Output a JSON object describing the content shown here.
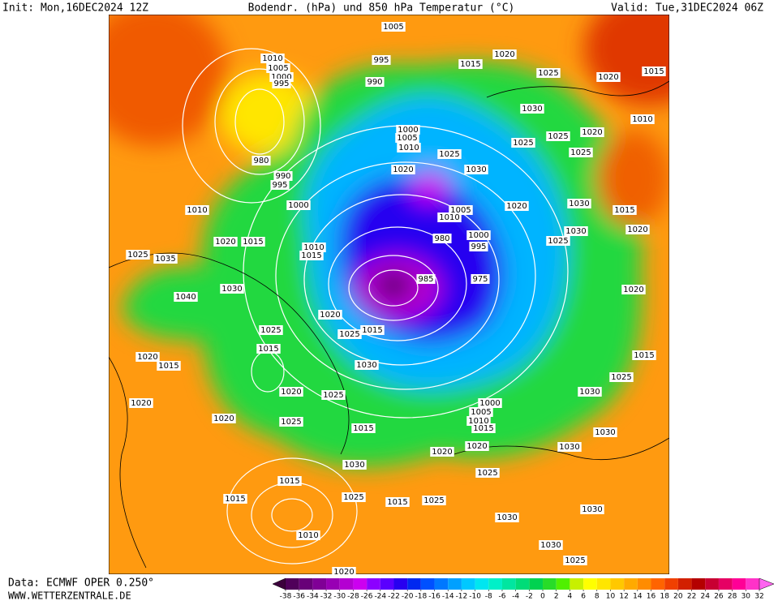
{
  "header": {
    "init": "Init: Mon,16DEC2024 12Z",
    "title": "Bodendr. (hPa) und 850 hPa Temperatur (°C)",
    "valid": "Valid: Tue,31DEC2024 06Z"
  },
  "footer": {
    "data": "Data: ECMWF OPER 0.250°",
    "site": "WWW.WETTERZENTRALE.DE"
  },
  "colorbar": {
    "ticks": [
      -38,
      -36,
      -34,
      -32,
      -30,
      -28,
      -26,
      -24,
      -22,
      -20,
      -18,
      -16,
      -14,
      -12,
      -10,
      -8,
      -6,
      -4,
      -2,
      0,
      2,
      4,
      6,
      8,
      10,
      12,
      14,
      16,
      18,
      20,
      22,
      24,
      26,
      28,
      30,
      32
    ],
    "colors": [
      "#3c003c",
      "#50005a",
      "#680078",
      "#800096",
      "#9800b4",
      "#b400d2",
      "#cc00f0",
      "#8c00ff",
      "#5a00ff",
      "#2800f0",
      "#0028f0",
      "#0050ff",
      "#0078ff",
      "#00a0ff",
      "#00c8ff",
      "#00e6f0",
      "#00f0c8",
      "#00e6a0",
      "#00dc78",
      "#00d250",
      "#28dc28",
      "#50f000",
      "#c8f000",
      "#ffff00",
      "#ffe600",
      "#ffc800",
      "#ffaa00",
      "#ff8c00",
      "#ff6400",
      "#f04000",
      "#d22000",
      "#b40000",
      "#c80032",
      "#e60064",
      "#ff0096",
      "#ff32c8",
      "#ff64f0"
    ]
  },
  "isobar_labels": [
    "1005",
    "995",
    "1010",
    "1005",
    "1000",
    "995",
    "990",
    "1015",
    "1020",
    "1025",
    "1020",
    "1015",
    "1030",
    "1020",
    "1010",
    "1025",
    "1025",
    "1025",
    "1000",
    "1005",
    "1010",
    "1025",
    "980",
    "990",
    "995",
    "1020",
    "1030",
    "1010",
    "1000",
    "1005",
    "1010",
    "1020",
    "1030",
    "1015",
    "1020",
    "1015",
    "980",
    "1000",
    "995",
    "1025",
    "1030",
    "1020",
    "1025",
    "1035",
    "1010",
    "1015",
    "985",
    "975",
    "1030",
    "1040",
    "1020",
    "1020",
    "1025",
    "1025",
    "1015",
    "1015",
    "1020",
    "1015",
    "1030",
    "1015",
    "1025",
    "1020",
    "1025",
    "1030",
    "1020",
    "1000",
    "1005",
    "1010",
    "1015",
    "1020",
    "1025",
    "1015",
    "1030",
    "1020",
    "1020",
    "1030",
    "1030",
    "1025",
    "1015",
    "1015",
    "1025",
    "1015",
    "1025",
    "1030",
    "1030",
    "1010",
    "1030",
    "1025",
    "1020"
  ]
}
